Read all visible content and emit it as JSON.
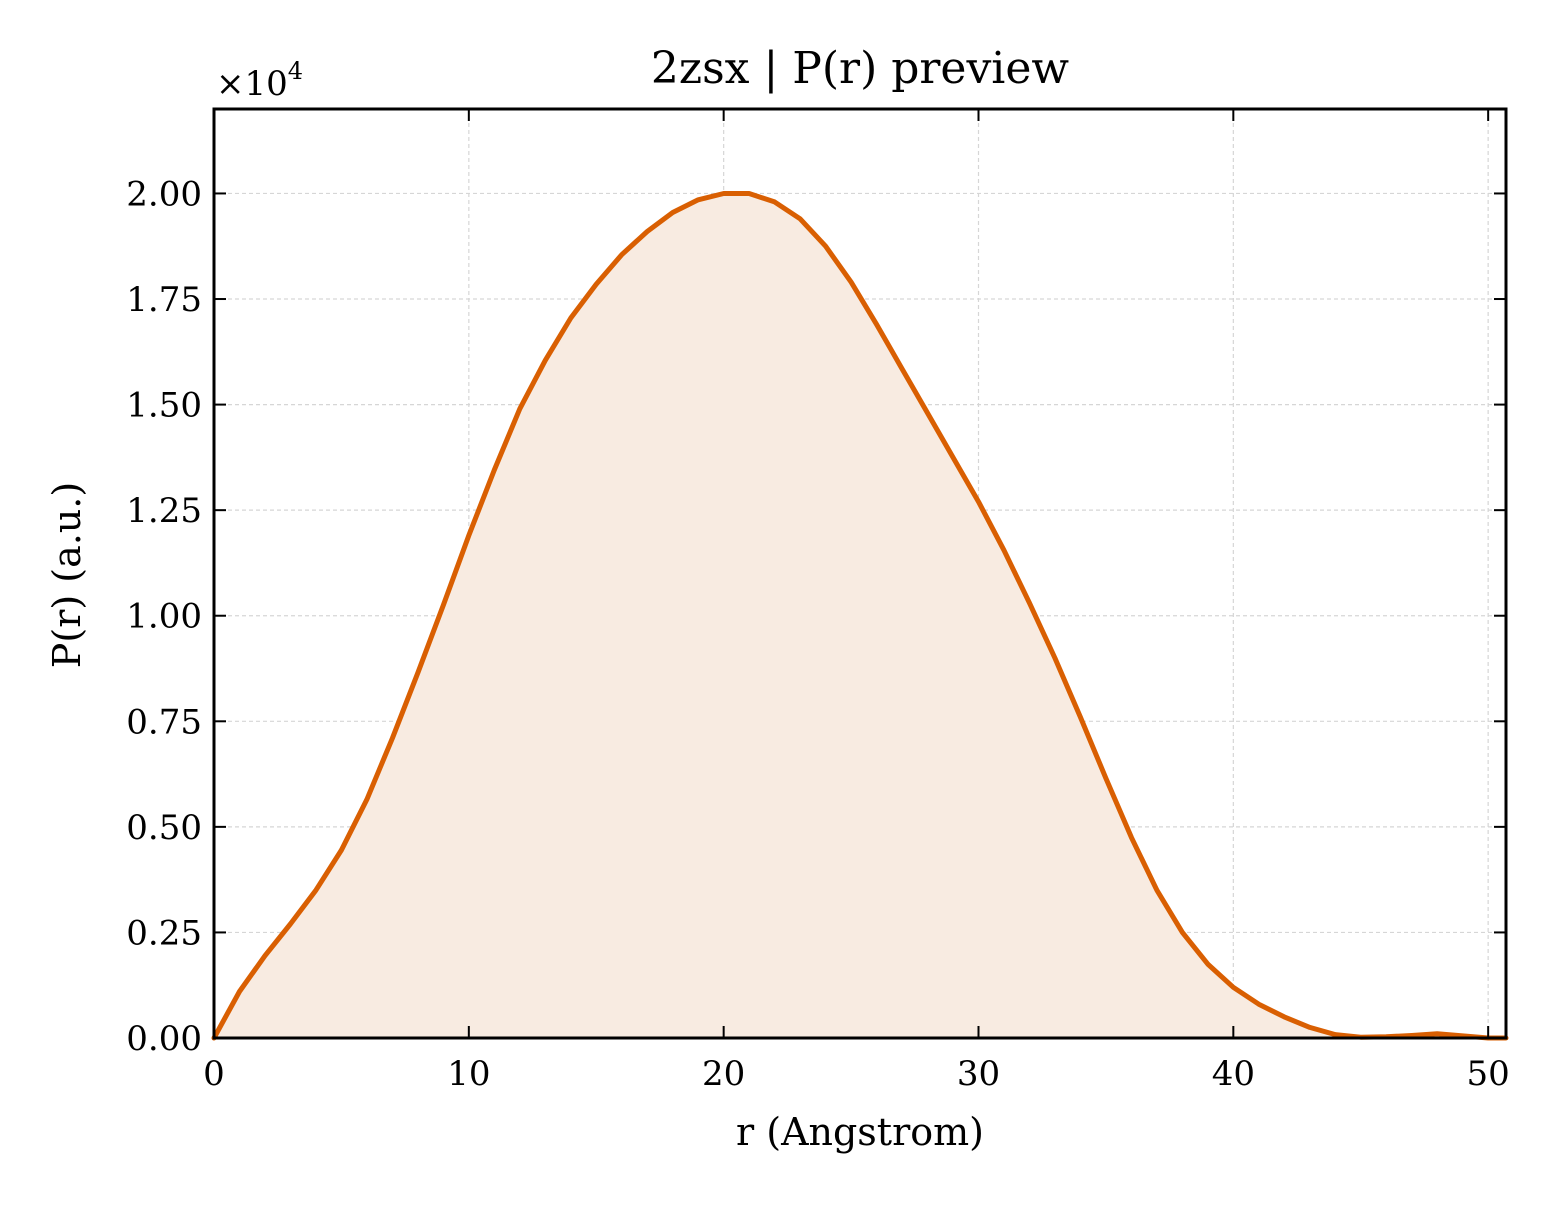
{
  "chart_data": {
    "type": "area",
    "title": "2zsx | P(r) preview",
    "xlabel": "r (Angstrom)",
    "ylabel": "P(r) (a.u.)",
    "y_multiplier_label": "×10",
    "y_multiplier_exponent": "4",
    "xlim": [
      0,
      50.7
    ],
    "ylim": [
      0,
      22000
    ],
    "x_ticks": [
      0,
      10,
      20,
      30,
      40,
      50
    ],
    "x_tick_labels": [
      "0",
      "10",
      "20",
      "30",
      "40",
      "50"
    ],
    "y_ticks": [
      0,
      2500,
      5000,
      7500,
      10000,
      12500,
      15000,
      17500,
      20000
    ],
    "y_tick_labels": [
      "0.00",
      "0.25",
      "0.50",
      "0.75",
      "1.00",
      "1.25",
      "1.50",
      "1.75",
      "2.00"
    ],
    "grid": true,
    "line_color": "#d95f02",
    "fill_color": "#f8ebe1",
    "series": [
      {
        "x": [
          0,
          1,
          2,
          3,
          4,
          5,
          6,
          7,
          8,
          9,
          10,
          11,
          12,
          13,
          14,
          15,
          16,
          17,
          18,
          19,
          20,
          21,
          22,
          23,
          24,
          25,
          26,
          27,
          28,
          29,
          30,
          31,
          32,
          33,
          34,
          35,
          36,
          37,
          38,
          39,
          40,
          41,
          42,
          43,
          44,
          45,
          46,
          47,
          48,
          49,
          50,
          50.7
        ],
        "y": [
          0,
          1100,
          1950,
          2700,
          3500,
          4450,
          5650,
          7100,
          8650,
          10250,
          11900,
          13450,
          14900,
          16050,
          17050,
          17850,
          18550,
          19100,
          19550,
          19850,
          20000,
          20000,
          19800,
          19400,
          18750,
          17900,
          16900,
          15850,
          14800,
          13750,
          12700,
          11550,
          10300,
          9000,
          7600,
          6150,
          4750,
          3500,
          2500,
          1750,
          1200,
          800,
          500,
          250,
          80,
          20,
          30,
          60,
          100,
          50,
          0,
          0
        ]
      }
    ]
  }
}
